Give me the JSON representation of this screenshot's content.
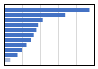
{
  "chart_data": {
    "type": "bar",
    "orientation": "horizontal",
    "categories": [
      null,
      null,
      null,
      null,
      null,
      null,
      null,
      null,
      null,
      null,
      null
    ],
    "values": [
      95,
      68,
      43,
      38,
      36,
      33,
      30,
      25,
      20,
      15,
      7
    ],
    "colors": [
      "#4472c4",
      "#4472c4",
      "#4472c4",
      "#4472c4",
      "#4472c4",
      "#4472c4",
      "#4472c4",
      "#4472c4",
      "#4472c4",
      "#4472c4",
      "#a8b8d8"
    ],
    "xlim": [
      0,
      100
    ],
    "xticks": [
      20,
      40,
      60,
      80,
      100
    ],
    "grid": true,
    "tick_labels": false
  }
}
